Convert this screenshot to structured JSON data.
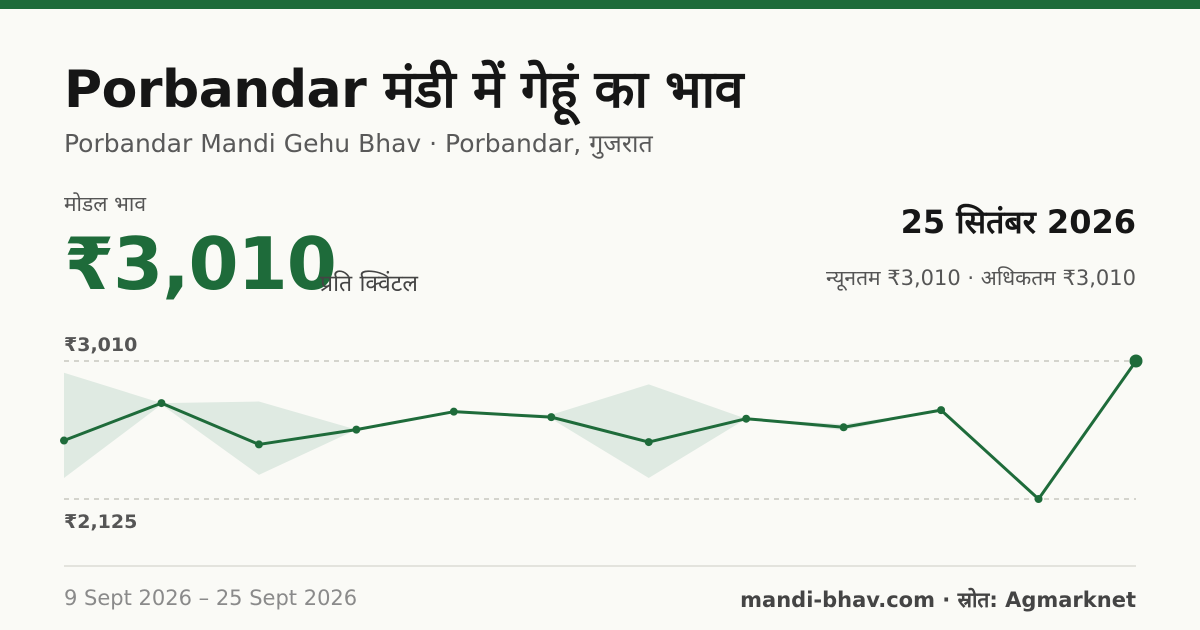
{
  "header": {
    "title": "Porbandar मंडी में गेहूं का भाव",
    "subtitle": "Porbandar Mandi Gehu Bhav · Porbandar, गुजरात"
  },
  "summary": {
    "modal_label": "मोडल भाव",
    "modal_price": "₹3,010",
    "unit": "प्रति क्विंटल",
    "date": "25 सितंबर 2026",
    "range_text": "न्यूनतम ₹3,010 · अधिकतम ₹3,010"
  },
  "chart_data": {
    "type": "line",
    "y_tick_labels": [
      "₹3,010",
      "₹2,125"
    ],
    "ylim": [
      2125,
      3010
    ],
    "grid": "dashed reference lines at min and max",
    "series": [
      {
        "values": [
          2500,
          2740,
          2475,
          2570,
          2685,
          2650,
          2490,
          2640,
          2585,
          2695,
          2125,
          3010
        ],
        "band_min": [
          2260,
          2730,
          2280,
          2570,
          2685,
          2640,
          2260,
          2640,
          2565,
          2695,
          2125,
          3010
        ],
        "band_max": [
          2935,
          2740,
          2750,
          2570,
          2685,
          2665,
          2860,
          2640,
          2605,
          2695,
          2125,
          3010
        ]
      }
    ],
    "line_color": "#1e6b3a",
    "band_color": "#dfeae2"
  },
  "footer": {
    "date_range": "9 Sept 2026 – 25 Sept 2026",
    "source": "mandi-bhav.com · स्रोत: Agmarknet"
  }
}
